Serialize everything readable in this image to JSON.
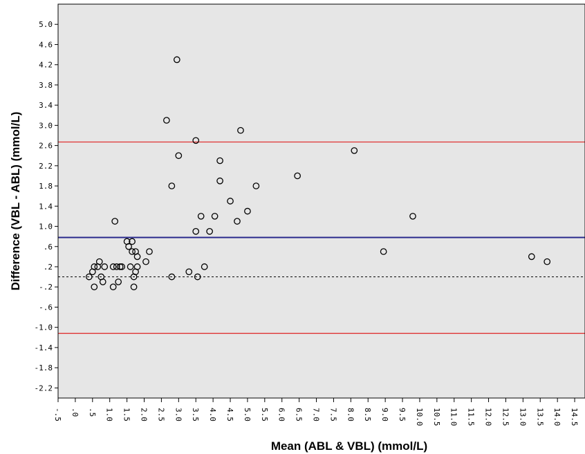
{
  "colors": {
    "plot_background": "#e6e6e6",
    "limit_lines": "#e03030",
    "mean_line": "#2a2a8c",
    "zero_line": "#000000",
    "points": "#000000"
  },
  "chart_data": {
    "type": "scatter",
    "title": "",
    "xlabel": "Mean (ABL & VBL) (mmol/L)",
    "ylabel": "Difference (VBL - ABL) (mmol/L)",
    "xlim": [
      -0.5,
      14.8
    ],
    "ylim": [
      -2.4,
      5.4
    ],
    "x_ticks": [
      -0.5,
      0.0,
      0.5,
      1.0,
      1.5,
      2.0,
      2.5,
      3.0,
      3.5,
      4.0,
      4.5,
      5.0,
      5.5,
      6.0,
      6.5,
      7.0,
      7.5,
      8.0,
      8.5,
      9.0,
      9.5,
      10.0,
      10.5,
      11.0,
      11.5,
      12.0,
      12.5,
      13.0,
      13.5,
      14.0,
      14.5
    ],
    "x_tick_labels": [
      "-.5",
      ".0",
      ".5",
      "1.0",
      "1.5",
      "2.0",
      "2.5",
      "3.0",
      "3.5",
      "4.0",
      "4.5",
      "5.0",
      "5.5",
      "6.0",
      "6.5",
      "7.0",
      "7.5",
      "8.0",
      "8.5",
      "9.0",
      "9.5",
      "10.0",
      "10.5",
      "11.0",
      "11.5",
      "12.0",
      "12.5",
      "13.0",
      "13.5",
      "14.0",
      "14.5"
    ],
    "y_ticks": [
      -2.2,
      -1.8,
      -1.4,
      -1.0,
      -0.6,
      -0.2,
      0.2,
      0.6,
      1.0,
      1.4,
      1.8,
      2.2,
      2.6,
      3.0,
      3.4,
      3.8,
      4.2,
      4.6,
      5.0
    ],
    "y_tick_labels": [
      "-2.2",
      "-1.8",
      "-1.4",
      "-1.0",
      "-.6",
      "-.2",
      ".2",
      ".6",
      "1.0",
      "1.4",
      "1.8",
      "2.2",
      "2.6",
      "3.0",
      "3.4",
      "3.8",
      "4.2",
      "4.6",
      "5.0"
    ],
    "grid": false,
    "reference_lines": [
      {
        "y": 2.67,
        "role": "upper limit of agreement",
        "color": "#e03030"
      },
      {
        "y": 0.78,
        "role": "mean difference",
        "color": "#2a2a8c"
      },
      {
        "y": 0.0,
        "role": "zero",
        "color": "#000000",
        "style": "dashed"
      },
      {
        "y": -1.12,
        "role": "lower limit of agreement",
        "color": "#e03030"
      }
    ],
    "series": [
      {
        "marker": "open-circle",
        "points": [
          {
            "x": 0.4,
            "y": 0.0
          },
          {
            "x": 0.5,
            "y": 0.1
          },
          {
            "x": 0.55,
            "y": 0.2
          },
          {
            "x": 0.55,
            "y": -0.2
          },
          {
            "x": 0.65,
            "y": 0.2
          },
          {
            "x": 0.7,
            "y": 0.3
          },
          {
            "x": 0.75,
            "y": 0.0
          },
          {
            "x": 0.8,
            "y": -0.1
          },
          {
            "x": 0.85,
            "y": 0.2
          },
          {
            "x": 1.1,
            "y": 0.2
          },
          {
            "x": 1.1,
            "y": -0.2
          },
          {
            "x": 1.15,
            "y": 1.1
          },
          {
            "x": 1.2,
            "y": 0.2
          },
          {
            "x": 1.25,
            "y": -0.1
          },
          {
            "x": 1.3,
            "y": 0.2
          },
          {
            "x": 1.35,
            "y": 0.2
          },
          {
            "x": 1.5,
            "y": 0.7
          },
          {
            "x": 1.55,
            "y": 0.6
          },
          {
            "x": 1.6,
            "y": 0.2
          },
          {
            "x": 1.65,
            "y": 0.7
          },
          {
            "x": 1.65,
            "y": 0.5
          },
          {
            "x": 1.7,
            "y": 0.0
          },
          {
            "x": 1.7,
            "y": -0.2
          },
          {
            "x": 1.75,
            "y": 0.1
          },
          {
            "x": 1.75,
            "y": 0.5
          },
          {
            "x": 1.8,
            "y": 0.4
          },
          {
            "x": 1.8,
            "y": 0.2
          },
          {
            "x": 2.05,
            "y": 0.3
          },
          {
            "x": 2.15,
            "y": 0.5
          },
          {
            "x": 2.65,
            "y": 3.1
          },
          {
            "x": 2.8,
            "y": 1.8
          },
          {
            "x": 2.8,
            "y": 0.0
          },
          {
            "x": 2.95,
            "y": 4.3
          },
          {
            "x": 3.0,
            "y": 2.4
          },
          {
            "x": 3.3,
            "y": 0.1
          },
          {
            "x": 3.5,
            "y": 2.7
          },
          {
            "x": 3.5,
            "y": 0.9
          },
          {
            "x": 3.55,
            "y": 0.0
          },
          {
            "x": 3.65,
            "y": 1.2
          },
          {
            "x": 3.75,
            "y": 0.2
          },
          {
            "x": 3.9,
            "y": 0.9
          },
          {
            "x": 4.05,
            "y": 1.2
          },
          {
            "x": 4.2,
            "y": 2.3
          },
          {
            "x": 4.2,
            "y": 1.9
          },
          {
            "x": 4.5,
            "y": 1.5
          },
          {
            "x": 4.7,
            "y": 1.1
          },
          {
            "x": 4.8,
            "y": 2.9
          },
          {
            "x": 5.0,
            "y": 1.3
          },
          {
            "x": 5.25,
            "y": 1.8
          },
          {
            "x": 6.45,
            "y": 2.0
          },
          {
            "x": 8.1,
            "y": 2.5
          },
          {
            "x": 8.95,
            "y": 0.5
          },
          {
            "x": 9.8,
            "y": 1.2
          },
          {
            "x": 13.25,
            "y": 0.4
          },
          {
            "x": 13.7,
            "y": 0.3
          }
        ]
      }
    ]
  }
}
